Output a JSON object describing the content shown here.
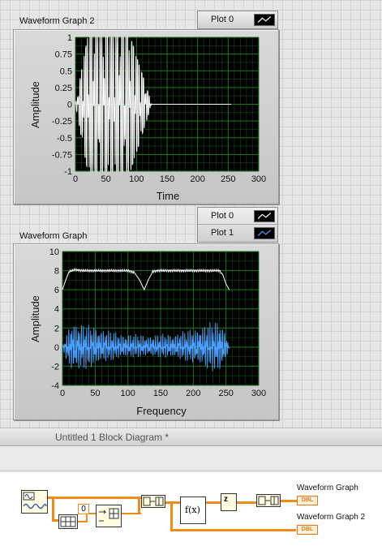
{
  "front_panel": {
    "graphs": [
      {
        "name": "Waveform Graph 2",
        "legend": [
          {
            "name": "Plot 0",
            "color": "#ffffff"
          }
        ],
        "chart_data": {
          "type": "line",
          "title": "Waveform Graph 2",
          "xlabel": "Time",
          "ylabel": "Amplitude",
          "xlim": [
            0,
            300
          ],
          "ylim": [
            -1,
            1
          ],
          "x_ticks": [
            "0",
            "50",
            "100",
            "150",
            "200",
            "250",
            "300"
          ],
          "y_ticks": [
            "1",
            "0.75",
            "0.5",
            "0.25",
            "0",
            "-0.25",
            "-0.5",
            "-0.75",
            "-1"
          ],
          "grid": true,
          "plot_background": "#000000",
          "grid_color": "#1a7a1a",
          "series": [
            {
              "name": "Plot 0",
              "color": "#ffffff",
              "description_values": {
                "segments": [
                  {
                    "x_start": 0,
                    "x_end": 20,
                    "behavior": "oscillation growing from 0 to full amplitude 1"
                  },
                  {
                    "x_start": 20,
                    "x_end": 90,
                    "behavior": "dense oscillation between -1 and 1"
                  },
                  {
                    "x_start": 90,
                    "x_end": 125,
                    "behavior": "oscillation decaying toward 0"
                  },
                  {
                    "x_start": 125,
                    "x_end": 255,
                    "behavior": "constant 0"
                  }
                ]
              }
            }
          ]
        }
      },
      {
        "name": "Waveform Graph",
        "legend": [
          {
            "name": "Plot 0",
            "color": "#ffffff"
          },
          {
            "name": "Plot 1",
            "color": "#4aa0ff"
          }
        ],
        "chart_data": {
          "type": "line",
          "title": "Waveform Graph",
          "xlabel": "Frequency",
          "ylabel": "Amplitude",
          "xlim": [
            0,
            300
          ],
          "ylim": [
            -4,
            10
          ],
          "x_ticks": [
            "0",
            "50",
            "100",
            "150",
            "200",
            "250",
            "300"
          ],
          "y_ticks": [
            "10",
            "8",
            "6",
            "4",
            "2",
            "0",
            "-2",
            "-4"
          ],
          "grid": true,
          "plot_background": "#000000",
          "grid_color": "#1a7a1a",
          "series": [
            {
              "name": "Plot 0",
              "color": "#ffffff",
              "x": [
                0,
                5,
                10,
                20,
                30,
                60,
                100,
                110,
                118,
                125,
                131,
                138,
                145,
                160,
                200,
                240,
                245,
                250,
                255
              ],
              "values": [
                6.0,
                7.0,
                7.9,
                8.1,
                8.0,
                8.0,
                8.0,
                7.8,
                7.0,
                6.0,
                7.0,
                7.9,
                8.0,
                8.0,
                8.0,
                8.0,
                7.6,
                6.6,
                6.0
              ]
            },
            {
              "name": "Plot 1",
              "color": "#4aa0ff",
              "x": [
                0,
                8,
                15,
                30,
                50,
                70,
                90,
                110,
                130,
                150,
                170,
                190,
                210,
                230,
                240,
                247,
                255
              ],
              "values_envelope_max": [
                0.0,
                1.8,
                3.0,
                2.5,
                2.3,
                1.8,
                1.5,
                1.4,
                1.3,
                1.4,
                1.5,
                1.8,
                2.3,
                2.7,
                3.0,
                2.2,
                0.2
              ],
              "values_envelope_min": [
                0.0,
                -2.0,
                -2.8,
                -2.5,
                -2.0,
                -1.5,
                -1.2,
                -1.1,
                -1.0,
                -1.1,
                -1.2,
                -1.5,
                -2.0,
                -2.6,
                -2.8,
                -2.0,
                -0.2
              ]
            }
          ]
        }
      }
    ]
  },
  "block_diagram": {
    "title": "Untitled 1 Block Diagram *",
    "constant_value": "0",
    "formula_label": "f(x)",
    "delay_label": "z",
    "terminals": [
      {
        "label": "Waveform Graph",
        "type": "DBL"
      },
      {
        "label": "Waveform Graph 2",
        "type": "DBL"
      }
    ],
    "wire_color": "#f28a16"
  }
}
